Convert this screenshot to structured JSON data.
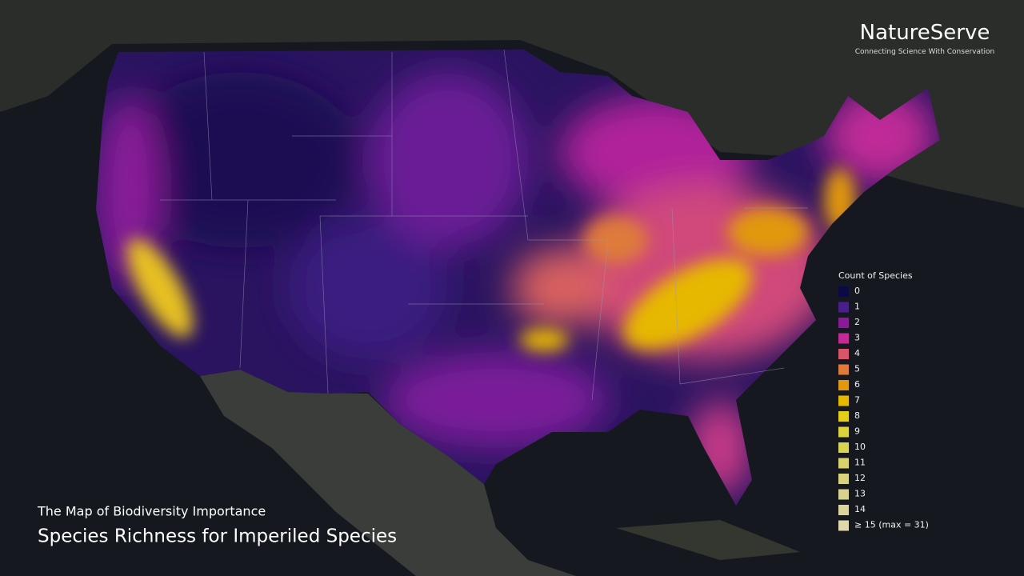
{
  "brand": {
    "name": "NatureServe",
    "tagline": "Connecting Science With Conservation"
  },
  "legend": {
    "title": "Count of Species",
    "items": [
      {
        "label": "0",
        "color": "#0c0a45"
      },
      {
        "label": "1",
        "color": "#4a1f8c"
      },
      {
        "label": "2",
        "color": "#8a1a9a"
      },
      {
        "label": "3",
        "color": "#c42a95"
      },
      {
        "label": "4",
        "color": "#d8566a"
      },
      {
        "label": "5",
        "color": "#de7a3a"
      },
      {
        "label": "6",
        "color": "#e1980e"
      },
      {
        "label": "7",
        "color": "#e6b800"
      },
      {
        "label": "8",
        "color": "#e3cf1a"
      },
      {
        "label": "9",
        "color": "#dcd43a"
      },
      {
        "label": "10",
        "color": "#d8d650"
      },
      {
        "label": "11",
        "color": "#d6d46a"
      },
      {
        "label": "12",
        "color": "#d8d47e"
      },
      {
        "label": "13",
        "color": "#d8d28e"
      },
      {
        "label": "14",
        "color": "#dcd49c"
      },
      {
        "label": "≥ 15 (max = 31)",
        "color": "#e0d8ac"
      }
    ]
  },
  "caption": {
    "subtitle": "The Map of Biodiversity Importance",
    "title": "Species Richness for Imperiled Species"
  }
}
